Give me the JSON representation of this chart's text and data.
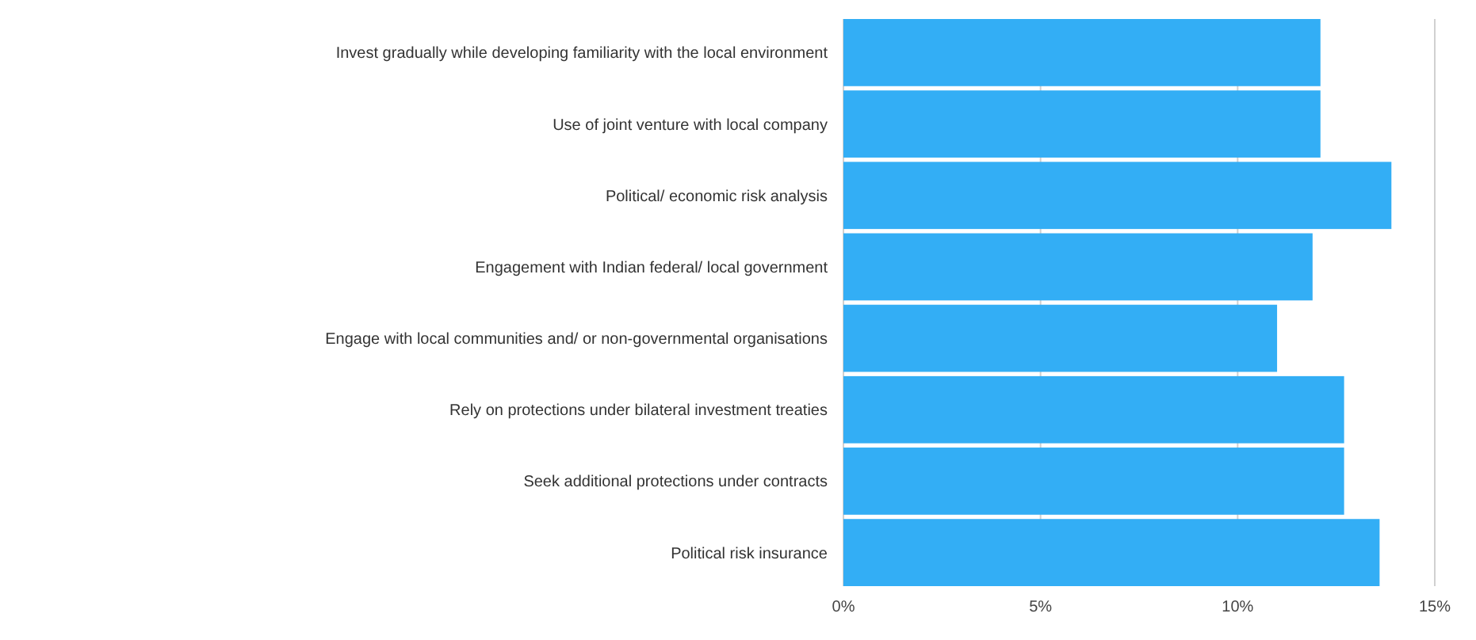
{
  "chart_data": {
    "type": "bar",
    "orientation": "horizontal",
    "categories": [
      "Invest gradually while developing familiarity with the local environment",
      "Use of joint venture with local company",
      "Political/ economic risk analysis",
      "Engagement with Indian federal/ local government",
      "Engage with local communities and/ or non-governmental organisations",
      "Rely on protections under bilateral investment treaties",
      "Seek additional protections under contracts",
      "Political risk insurance"
    ],
    "values": [
      12.1,
      12.1,
      13.9,
      11.9,
      11.0,
      12.7,
      12.7,
      13.6
    ],
    "color": "#33aef5",
    "xlim": [
      0,
      15
    ],
    "xticks": [
      {
        "value": 0,
        "label": "0%"
      },
      {
        "value": 5,
        "label": "5%"
      },
      {
        "value": 10,
        "label": "10%"
      },
      {
        "value": 15,
        "label": "15%"
      }
    ],
    "grid": "x"
  }
}
